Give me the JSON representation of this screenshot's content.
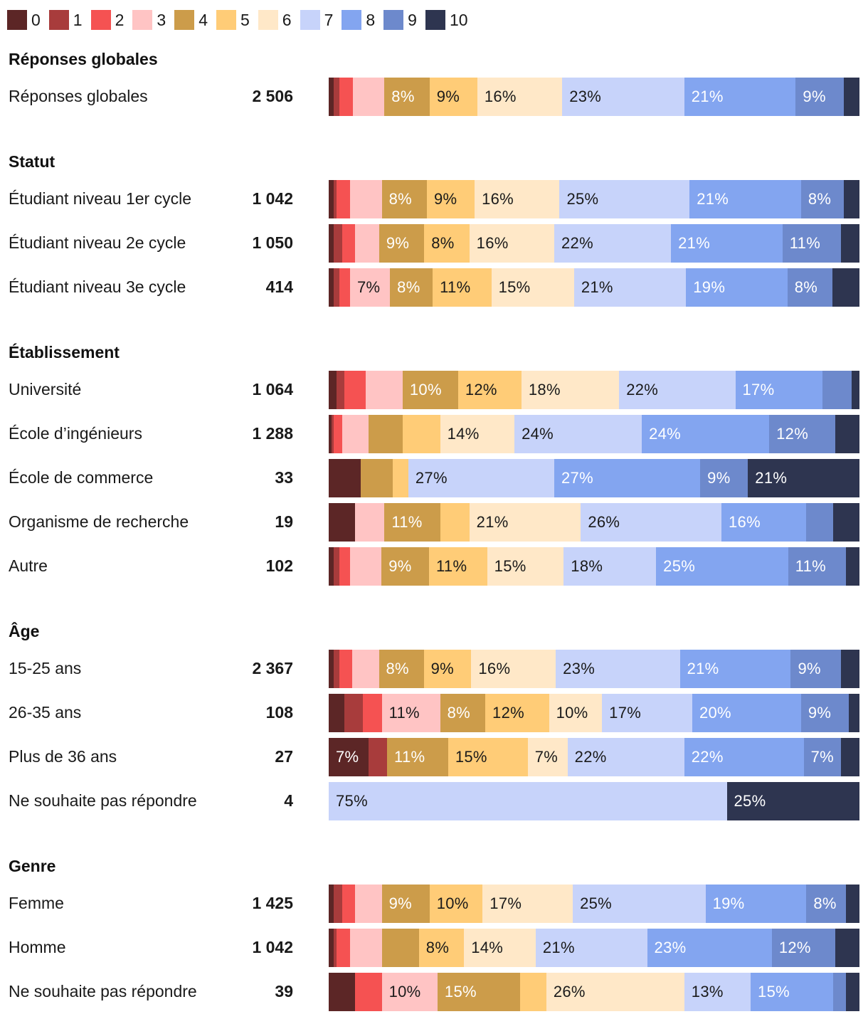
{
  "colors": [
    "#5c2626",
    "#a83c3c",
    "#f55252",
    "#ffc4c4",
    "#cc9c4a",
    "#ffcc77",
    "#ffe8c8",
    "#c7d3fa",
    "#83a5f0",
    "#6d89cc",
    "#2e3550"
  ],
  "label_colors": [
    "#ffffff",
    "#ffffff",
    "#ffffff",
    "#1a1a1a",
    "#ffffff",
    "#1a1a1a",
    "#1a1a1a",
    "#1a1a1a",
    "#ffffff",
    "#ffffff",
    "#ffffff"
  ],
  "chart_data": {
    "type": "bar",
    "orientation": "horizontal",
    "stacked": true,
    "normalized": true,
    "legend_position": "top-left",
    "categories": [
      "0",
      "1",
      "2",
      "3",
      "4",
      "5",
      "6",
      "7",
      "8",
      "9",
      "10"
    ],
    "groups": [
      {
        "title": "Réponses globales",
        "rows": [
          {
            "label": "Réponses globales",
            "count": "2 506",
            "values": [
              1,
              1,
              2.5,
              6,
              8.5,
              9,
              16,
              23,
              21,
              9,
              3
            ],
            "labels": [
              "",
              "",
              "",
              "",
              "8%",
              "9%",
              "16%",
              "23%",
              "21%",
              "9%",
              ""
            ]
          }
        ]
      },
      {
        "title": "Statut",
        "rows": [
          {
            "label": "Étudiant niveau 1er cycle",
            "count": "1 042",
            "values": [
              1,
              0.5,
              2.5,
              6,
              8.5,
              9,
              16,
              24.5,
              21,
              8,
              3
            ],
            "labels": [
              "",
              "",
              "",
              "",
              "8%",
              "9%",
              "16%",
              "25%",
              "21%",
              "8%",
              ""
            ]
          },
          {
            "label": "Étudiant niveau 2e cycle",
            "count": "1 050",
            "values": [
              1,
              1.5,
              2.5,
              4.5,
              8.5,
              8.5,
              16,
              22,
              21,
              11,
              3.5
            ],
            "labels": [
              "",
              "",
              "",
              "",
              "9%",
              "8%",
              "16%",
              "22%",
              "21%",
              "11%",
              ""
            ]
          },
          {
            "label": "Étudiant niveau 3e cycle",
            "count": "414",
            "values": [
              1,
              1,
              2,
              7.5,
              8,
              11,
              15.5,
              21,
              19,
              8.5,
              5
            ],
            "labels": [
              "",
              "",
              "",
              "7%",
              "8%",
              "11%",
              "15%",
              "21%",
              "19%",
              "8%",
              ""
            ]
          }
        ]
      },
      {
        "title": "Établissement",
        "rows": [
          {
            "label": "Université",
            "count": "1 064",
            "values": [
              1.5,
              1.5,
              4,
              7,
              10.5,
              12,
              18.5,
              22,
              16.5,
              5.5,
              1.5
            ],
            "labels": [
              "",
              "",
              "",
              "",
              "10%",
              "12%",
              "18%",
              "22%",
              "17%",
              "",
              ""
            ]
          },
          {
            "label": "École d’ingénieurs",
            "count": "1 288",
            "values": [
              0.5,
              0.5,
              1.5,
              5,
              6.5,
              7,
              14,
              24,
              24,
              12.5,
              4.5
            ],
            "labels": [
              "",
              "",
              "",
              "",
              "",
              "",
              "14%",
              "24%",
              "24%",
              "12%",
              ""
            ]
          },
          {
            "label": "École de commerce",
            "count": "33",
            "values": [
              6,
              0,
              0,
              0,
              6,
              3,
              0,
              27.5,
              27.5,
              9,
              21
            ],
            "labels": [
              "",
              "",
              "",
              "",
              "",
              "",
              "",
              "27%",
              "27%",
              "9%",
              "21%"
            ]
          },
          {
            "label": "Organisme de recherche",
            "count": "19",
            "values": [
              5,
              0,
              0,
              5.5,
              10.5,
              5.5,
              21,
              26.5,
              16,
              5,
              5
            ],
            "labels": [
              "",
              "",
              "",
              "",
              "11%",
              "",
              "21%",
              "26%",
              "16%",
              "",
              ""
            ]
          },
          {
            "label": "Autre",
            "count": "102",
            "values": [
              1,
              1,
              2,
              6,
              9,
              11,
              14.5,
              17.5,
              25,
              11,
              2.5
            ],
            "labels": [
              "",
              "",
              "",
              "",
              "9%",
              "11%",
              "15%",
              "18%",
              "25%",
              "11%",
              ""
            ]
          }
        ]
      },
      {
        "title": "Âge",
        "rows": [
          {
            "label": "15-25 ans",
            "count": "2 367",
            "values": [
              1,
              1,
              2.5,
              5,
              8.5,
              9,
              16,
              23.5,
              21,
              9.5,
              3.5
            ],
            "labels": [
              "",
              "",
              "",
              "",
              "8%",
              "9%",
              "16%",
              "23%",
              "21%",
              "9%",
              ""
            ]
          },
          {
            "label": "26-35 ans",
            "count": "108",
            "values": [
              3,
              3.5,
              3.5,
              11,
              8.5,
              12,
              10,
              17,
              20.5,
              9,
              2
            ],
            "labels": [
              "",
              "",
              "",
              "11%",
              "8%",
              "12%",
              "10%",
              "17%",
              "20%",
              "9%",
              ""
            ]
          },
          {
            "label": "Plus de 36 ans",
            "count": "27",
            "values": [
              7.5,
              3.5,
              0,
              0,
              11.5,
              15,
              7.5,
              22,
              22.5,
              7,
              3.5
            ],
            "labels": [
              "7%",
              "",
              "",
              "",
              "11%",
              "15%",
              "7%",
              "22%",
              "22%",
              "7%",
              ""
            ]
          },
          {
            "label": "Ne souhaite pas répondre",
            "count": "4",
            "values": [
              0,
              0,
              0,
              0,
              0,
              0,
              0,
              75,
              0,
              0,
              25
            ],
            "labels": [
              "",
              "",
              "",
              "",
              "",
              "",
              "",
              "75%",
              "",
              "",
              "25%"
            ]
          }
        ]
      },
      {
        "title": "Genre",
        "rows": [
          {
            "label": "Femme",
            "count": "1 425",
            "values": [
              1,
              1.5,
              2.5,
              5,
              9,
              10,
              17,
              25,
              19,
              7.5,
              2.5
            ],
            "labels": [
              "",
              "",
              "",
              "",
              "9%",
              "10%",
              "17%",
              "25%",
              "19%",
              "8%",
              ""
            ]
          },
          {
            "label": "Homme",
            "count": "1 042",
            "values": [
              1,
              0.5,
              2.5,
              6,
              7,
              8.5,
              13.5,
              21,
              23.5,
              12,
              4.5
            ],
            "labels": [
              "",
              "",
              "",
              "",
              "",
              "8%",
              "14%",
              "21%",
              "23%",
              "12%",
              ""
            ]
          },
          {
            "label": "Ne souhaite pas répondre",
            "count": "39",
            "values": [
              5,
              0,
              5,
              10.5,
              15.5,
              5,
              26,
              12.5,
              15.5,
              2.5,
              2.5
            ],
            "labels": [
              "",
              "",
              "",
              "10%",
              "15%",
              "",
              "26%",
              "13%",
              "15%",
              "",
              ""
            ]
          }
        ]
      }
    ]
  }
}
